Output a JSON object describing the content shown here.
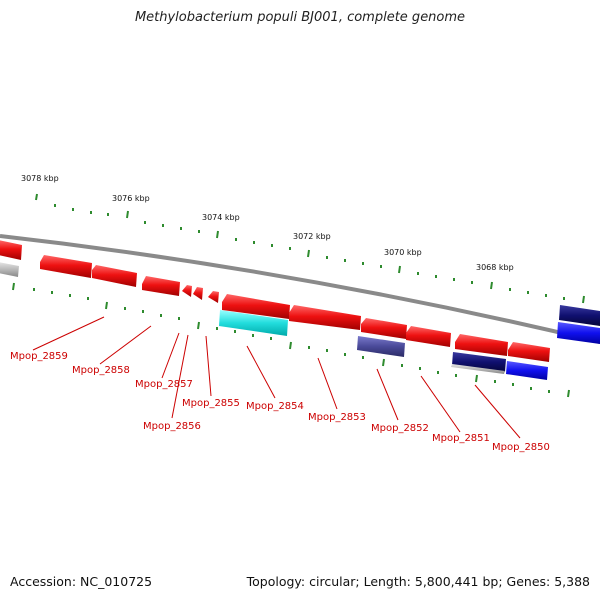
{
  "title": "Methylobacterium populi BJ001, complete genome",
  "footer": {
    "accession": "Accession: NC_010725",
    "stats": "Topology: circular; Length: 5,800,441 bp; Genes: 5,388"
  },
  "colors": {
    "backbone": "#8a8a8a",
    "tick": "#2e8b2e",
    "label": "#cc0000",
    "gene_red": "#ee1111",
    "gene_cyan": "#22dddd",
    "gene_navy": "#101070",
    "gene_indigo": "#4a4a99",
    "gene_blue": "#1010ee",
    "gene_gray": "#b8b8b8"
  },
  "kbp_labels": [
    "3078 kbp",
    "3076 kbp",
    "3074 kbp",
    "3072 kbp",
    "3070 kbp",
    "3068 kbp"
  ],
  "gene_labels": [
    "Mpop_2859",
    "Mpop_2858",
    "Mpop_2857",
    "Mpop_2856",
    "Mpop_2855",
    "Mpop_2854",
    "Mpop_2853",
    "Mpop_2852",
    "Mpop_2851",
    "Mpop_2850"
  ]
}
